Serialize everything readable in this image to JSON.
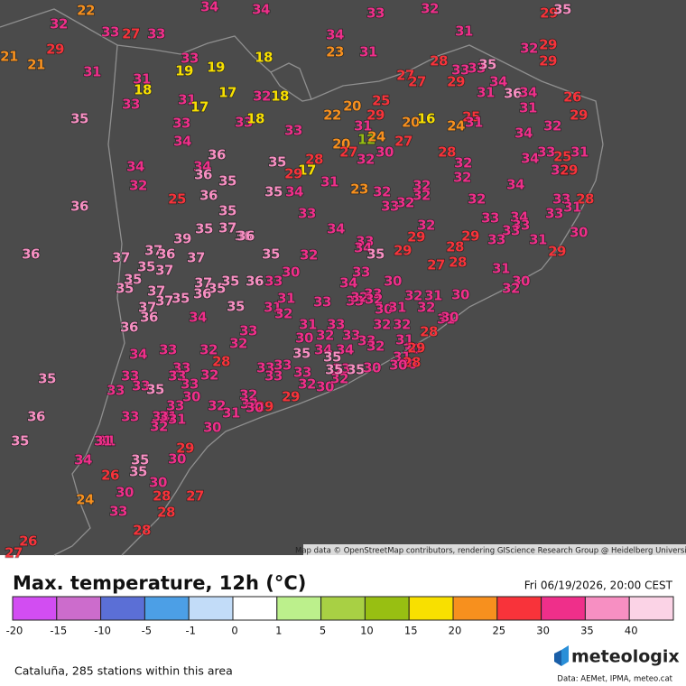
{
  "map": {
    "attribution": "Map data © OpenStreetMap contributors, rendering GIScience Research Group @ Heidelberg University",
    "stations": [
      32,
      22,
      33,
      27,
      33,
      34,
      34,
      33,
      32,
      29,
      35,
      21,
      21,
      29,
      31,
      33,
      19,
      19,
      18,
      34,
      23,
      31,
      31,
      32,
      29,
      29,
      31,
      18,
      33,
      31,
      17,
      17,
      32,
      18,
      27,
      28,
      27,
      29,
      33,
      33,
      35,
      34,
      31,
      36,
      34,
      31,
      26,
      35,
      33,
      33,
      18,
      33,
      22,
      20,
      25,
      31,
      29,
      20,
      16,
      24,
      25,
      31,
      32,
      29,
      34,
      36,
      34,
      34,
      36,
      20,
      12,
      24,
      27,
      27,
      32,
      30,
      28,
      34,
      35,
      28,
      17,
      29,
      32,
      32,
      34,
      33,
      25,
      31,
      32,
      29,
      32,
      35,
      25,
      36,
      35,
      34,
      31,
      23,
      32,
      32,
      32,
      34,
      36,
      35,
      33,
      33,
      32,
      32,
      33,
      28,
      31,
      33,
      35,
      37,
      36,
      39,
      36,
      34,
      33,
      34,
      32,
      29,
      33,
      34,
      33,
      33,
      33,
      31,
      30,
      29,
      28,
      36,
      37,
      37,
      36,
      37,
      35,
      32,
      35,
      29,
      27,
      28,
      31,
      29,
      35,
      37,
      35,
      35,
      37,
      35,
      35,
      36,
      33,
      30,
      34,
      33,
      30,
      33,
      32,
      31,
      30,
      30,
      32,
      37,
      37,
      35,
      36,
      37,
      36,
      34,
      35,
      31,
      31,
      32,
      33,
      33,
      32,
      32,
      30,
      31,
      32,
      31,
      30,
      36,
      33,
      31,
      33,
      32,
      33,
      32,
      32,
      32,
      30,
      28,
      31,
      30,
      33,
      32,
      29,
      34,
      33,
      32,
      34,
      34,
      35,
      35,
      31,
      30,
      28,
      33,
      28,
      33,
      33,
      33,
      35,
      30,
      30,
      33,
      32,
      33,
      33,
      35,
      33,
      33,
      33,
      35,
      33,
      32,
      30,
      32,
      35,
      30,
      33,
      32,
      32,
      32,
      29,
      30,
      29,
      36,
      33,
      34,
      31,
      31,
      32,
      31,
      30,
      35,
      31,
      31,
      29,
      34,
      35,
      30,
      35,
      26,
      30,
      30,
      27,
      28,
      24,
      33,
      28,
      28,
      26,
      27
    ]
  },
  "legend": {
    "title": "Max. temperature, 12h (°C)",
    "timestamp": "Fri 06/19/2026, 20:00 CEST",
    "ticks": [
      -20,
      -15,
      -10,
      -5,
      -1,
      0,
      1,
      5,
      10,
      15,
      20,
      25,
      30,
      35,
      40
    ],
    "colors": [
      "#d24df2",
      "#cc6ccc",
      "#5b6fd6",
      "#4c9fe6",
      "#c2dcf8",
      "#ffffff",
      "#bcf08c",
      "#a8d044",
      "#98bf12",
      "#f8e000",
      "#f7901e",
      "#f8333a",
      "#ef2f8a",
      "#f78fc2",
      "#fbd3e6"
    ]
  },
  "footer": {
    "region_note": "Cataluña, 285 stations within this area",
    "brand": "meteologix",
    "sources": "Data: AEMet, IPMA, meteo.cat"
  }
}
